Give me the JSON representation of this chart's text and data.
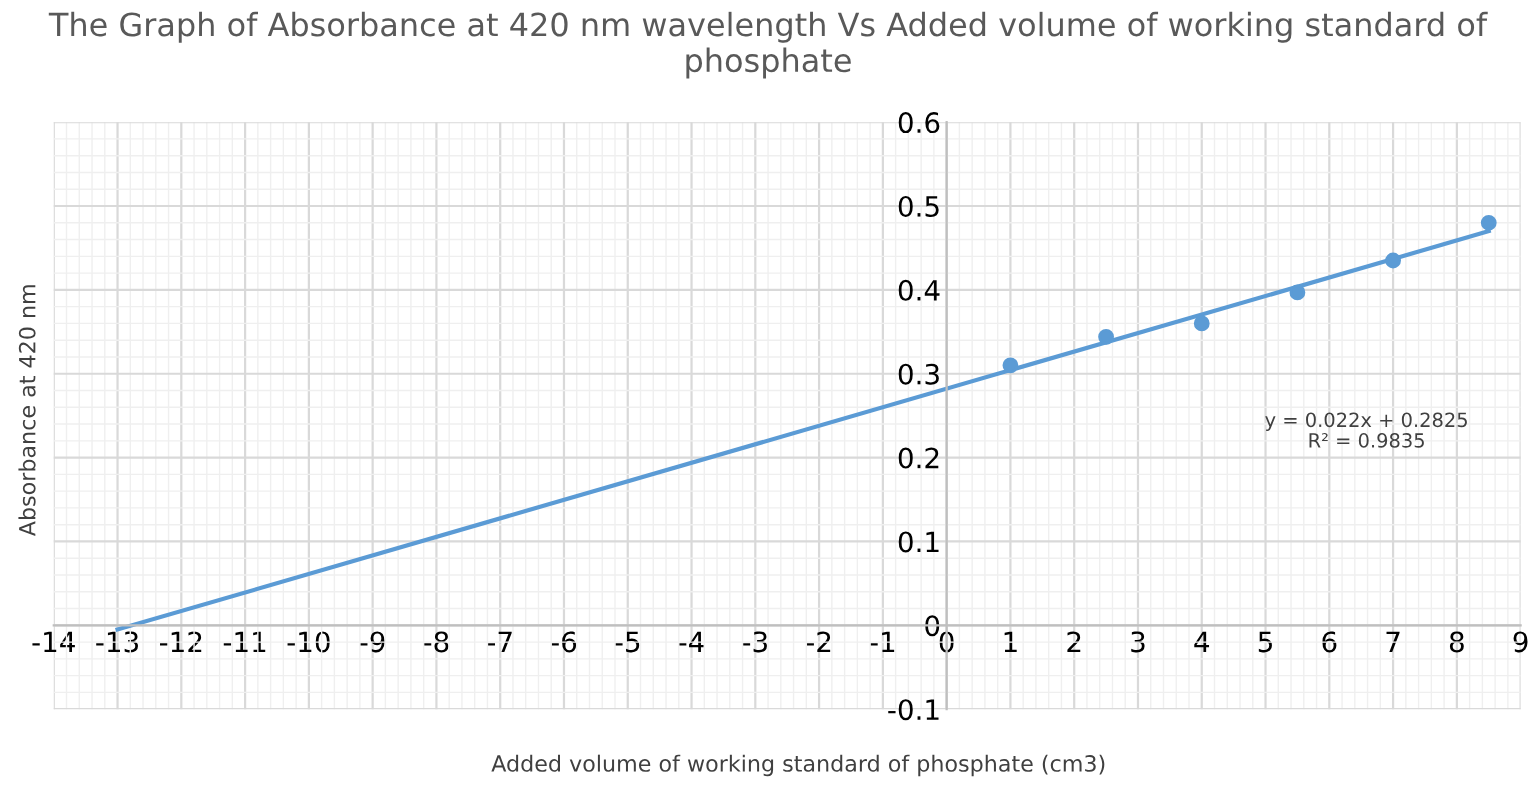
{
  "chart_data": {
    "type": "scatter",
    "title": "The Graph of Absorbance at 420 nm wavelength Vs Added volume of working standard of phosphate",
    "xlabel": "Added volume of working standard of phosphate (cm3)",
    "ylabel": "Absorbance at 420 nm",
    "series": [
      {
        "color": "#5b9bd5",
        "x": [
          1,
          2.5,
          4,
          5.5,
          7,
          8.5
        ],
        "values": [
          0.31,
          0.344,
          0.36,
          0.397,
          0.435,
          0.48
        ],
        "marker": "circle"
      },
      {
        "type": "line",
        "color": "#5b9bd5",
        "x": [
          -13,
          8.5
        ],
        "values": [
          -0.005,
          0.47
        ],
        "marker": "none",
        "line_style": "solid"
      }
    ],
    "annotations": [
      "y = 0.022x + 0.2825",
      "R² = 0.9835"
    ],
    "xlim": [
      -14,
      9
    ],
    "ylim": [
      -0.1,
      0.6
    ],
    "xticks": [
      -14,
      -13,
      -12,
      -11,
      -10,
      -9,
      -8,
      -7,
      -6,
      -5,
      -4,
      -3,
      -2,
      -1,
      0,
      1,
      2,
      3,
      4,
      5,
      6,
      7,
      8,
      9
    ],
    "yticks": [
      {
        "value": -0.1,
        "label": "-0.1"
      },
      0,
      0.1,
      0.2,
      0.3,
      0.4,
      0.5,
      0.6
    ],
    "grid": true,
    "legend": false
  }
}
